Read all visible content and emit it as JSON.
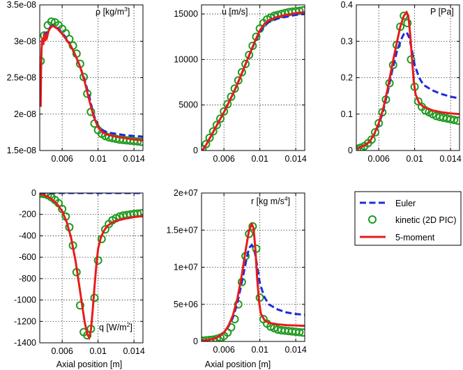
{
  "legend": {
    "entries": [
      {
        "key": "euler",
        "label": "Euler"
      },
      {
        "key": "kinetic",
        "label": "kinetic (2D PIC)"
      },
      {
        "key": "moment",
        "label": "5-moment"
      }
    ]
  },
  "styles": {
    "euler_color": "#1f2ad8",
    "kinetic_color": "#1f9a1f",
    "moment_color": "#e81b1b"
  },
  "chart_data": [
    {
      "id": "rho",
      "type": "line",
      "title": "ρ [kg/m",
      "title_sup": "3",
      "title_tail": "]",
      "xlim": [
        0.0035,
        0.015
      ],
      "ylim": [
        1.5e-08,
        3.5e-08
      ],
      "xticks": [
        0.006,
        0.01,
        0.014
      ],
      "xticklabels": [
        "0.006",
        "0.01",
        "0.014"
      ],
      "yticks": [
        1.5e-08,
        2e-08,
        2.5e-08,
        3e-08,
        3.5e-08
      ],
      "yticklabels": [
        "1.5e-08",
        "2e-08",
        "2.5e-08",
        "3e-08",
        "3.5e-08"
      ],
      "xlabel": "",
      "series": [
        {
          "name": "Euler",
          "x": [
            0.0037,
            0.004,
            0.0043,
            0.0047,
            0.005,
            0.0055,
            0.006,
            0.0065,
            0.007,
            0.0075,
            0.008,
            0.0085,
            0.009,
            0.0095,
            0.01,
            0.0105,
            0.011,
            0.012,
            0.013,
            0.014,
            0.015
          ],
          "y": [
            2.95e-08,
            3.1e-08,
            3.12e-08,
            3.2e-08,
            3.22e-08,
            3.18e-08,
            3.12e-08,
            3.03e-08,
            2.93e-08,
            2.8e-08,
            2.65e-08,
            2.47e-08,
            2.25e-08,
            1.99e-08,
            1.84e-08,
            1.78e-08,
            1.75e-08,
            1.73e-08,
            1.71e-08,
            1.7e-08,
            1.69e-08
          ]
        },
        {
          "name": "kinetic (2D PIC)",
          "x": [
            0.0036,
            0.004,
            0.0044,
            0.0048,
            0.0052,
            0.0056,
            0.006,
            0.0064,
            0.0068,
            0.0072,
            0.0076,
            0.008,
            0.0084,
            0.0088,
            0.0092,
            0.0096,
            0.01,
            0.0104,
            0.0108,
            0.0112,
            0.0116,
            0.012,
            0.0124,
            0.0128,
            0.0132,
            0.0136,
            0.014,
            0.0144,
            0.0148
          ],
          "y": [
            2.73e-08,
            3.08e-08,
            3.22e-08,
            3.27e-08,
            3.26e-08,
            3.22e-08,
            3.17e-08,
            3.11e-08,
            3.03e-08,
            2.94e-08,
            2.83e-08,
            2.69e-08,
            2.51e-08,
            2.28e-08,
            2.03e-08,
            1.87e-08,
            1.78e-08,
            1.73e-08,
            1.7e-08,
            1.68e-08,
            1.67e-08,
            1.66e-08,
            1.65e-08,
            1.645e-08,
            1.64e-08,
            1.635e-08,
            1.63e-08,
            1.625e-08,
            1.62e-08
          ]
        },
        {
          "name": "5-moment",
          "x": [
            0.0036,
            0.00365,
            0.0037,
            0.0038,
            0.0039,
            0.004,
            0.0041,
            0.0042,
            0.0043,
            0.0045,
            0.0048,
            0.005,
            0.0055,
            0.006,
            0.0065,
            0.007,
            0.0075,
            0.008,
            0.0085,
            0.009,
            0.0095,
            0.01,
            0.0105,
            0.011,
            0.012,
            0.013,
            0.014,
            0.015
          ],
          "y": [
            2.1e-08,
            2.6e-08,
            2.9e-08,
            3.05e-08,
            2.95e-08,
            3.1e-08,
            3e-08,
            3.08e-08,
            3.05e-08,
            3.15e-08,
            3.2e-08,
            3.21e-08,
            3.17e-08,
            3.1e-08,
            3.02e-08,
            2.93e-08,
            2.8e-08,
            2.65e-08,
            2.45e-08,
            2.2e-08,
            1.97e-08,
            1.82e-08,
            1.75e-08,
            1.72e-08,
            1.69e-08,
            1.67e-08,
            1.65e-08,
            1.64e-08
          ]
        }
      ]
    },
    {
      "id": "u",
      "type": "line",
      "title": "u [m/s]",
      "title_sup": "",
      "title_tail": "",
      "xlim": [
        0.0035,
        0.015
      ],
      "ylim": [
        0,
        16000
      ],
      "xticks": [
        0.006,
        0.01,
        0.014
      ],
      "xticklabels": [
        "0.006",
        "0.01",
        "0.014"
      ],
      "yticks": [
        0,
        5000,
        10000,
        15000
      ],
      "yticklabels": [
        "0",
        "5000",
        "10000",
        "15000"
      ],
      "xlabel": "",
      "series": [
        {
          "name": "Euler",
          "x": [
            0.0036,
            0.004,
            0.0045,
            0.005,
            0.0055,
            0.006,
            0.0065,
            0.007,
            0.0075,
            0.008,
            0.0085,
            0.009,
            0.0095,
            0.01,
            0.0105,
            0.011,
            0.012,
            0.013,
            0.014,
            0.015
          ],
          "y": [
            0,
            600,
            1500,
            2400,
            3300,
            4200,
            5200,
            6200,
            7300,
            8500,
            9700,
            10900,
            12000,
            13000,
            13700,
            14100,
            14500,
            14700,
            14900,
            15000
          ]
        },
        {
          "name": "kinetic (2D PIC)",
          "x": [
            0.0036,
            0.004,
            0.0044,
            0.0048,
            0.0052,
            0.0056,
            0.006,
            0.0064,
            0.0068,
            0.0072,
            0.0076,
            0.008,
            0.0084,
            0.0088,
            0.0092,
            0.0096,
            0.01,
            0.0104,
            0.0108,
            0.0112,
            0.0116,
            0.012,
            0.0124,
            0.0128,
            0.0132,
            0.0136,
            0.014,
            0.0144,
            0.0148
          ],
          "y": [
            150,
            700,
            1400,
            2100,
            2800,
            3500,
            4300,
            5100,
            5900,
            6800,
            7700,
            8600,
            9500,
            10500,
            11500,
            12500,
            13400,
            14000,
            14400,
            14600,
            14800,
            14900,
            15000,
            15100,
            15200,
            15250,
            15300,
            15350,
            15400
          ]
        },
        {
          "name": "5-moment",
          "x": [
            0.0036,
            0.004,
            0.0045,
            0.005,
            0.0055,
            0.006,
            0.0065,
            0.007,
            0.0075,
            0.008,
            0.0085,
            0.009,
            0.0095,
            0.01,
            0.0105,
            0.011,
            0.012,
            0.013,
            0.014,
            0.015
          ],
          "y": [
            0,
            600,
            1500,
            2400,
            3300,
            4200,
            5200,
            6200,
            7300,
            8500,
            9700,
            10900,
            12100,
            13200,
            13900,
            14300,
            14700,
            14900,
            15100,
            15200
          ]
        }
      ]
    },
    {
      "id": "P",
      "type": "line",
      "title": "P [Pa]",
      "title_sup": "",
      "title_tail": "",
      "xlim": [
        0.0035,
        0.015
      ],
      "ylim": [
        0,
        0.4
      ],
      "xticks": [
        0.006,
        0.01,
        0.014
      ],
      "xticklabels": [
        "0.006",
        "0.01",
        "0.014"
      ],
      "yticks": [
        0,
        0.1,
        0.2,
        0.3,
        0.4
      ],
      "yticklabels": [
        "0",
        "0.1",
        "0.2",
        "0.3",
        "0.4"
      ],
      "xlabel": "",
      "series": [
        {
          "name": "Euler",
          "x": [
            0.0036,
            0.0045,
            0.005,
            0.0055,
            0.006,
            0.0065,
            0.007,
            0.0075,
            0.008,
            0.0085,
            0.0088,
            0.0091,
            0.0094,
            0.0097,
            0.01,
            0.0105,
            0.011,
            0.012,
            0.013,
            0.014,
            0.015
          ],
          "y": [
            0.005,
            0.015,
            0.025,
            0.045,
            0.07,
            0.11,
            0.16,
            0.22,
            0.27,
            0.305,
            0.32,
            0.325,
            0.31,
            0.275,
            0.235,
            0.2,
            0.18,
            0.165,
            0.155,
            0.148,
            0.143
          ]
        },
        {
          "name": "kinetic (2D PIC)",
          "x": [
            0.0036,
            0.004,
            0.0044,
            0.0048,
            0.0052,
            0.0056,
            0.006,
            0.0064,
            0.0068,
            0.0072,
            0.0076,
            0.008,
            0.0084,
            0.0088,
            0.0092,
            0.0096,
            0.01,
            0.0104,
            0.0108,
            0.0112,
            0.0116,
            0.012,
            0.0124,
            0.0128,
            0.0132,
            0.0136,
            0.014,
            0.0144,
            0.0148
          ],
          "y": [
            0.005,
            0.008,
            0.012,
            0.02,
            0.03,
            0.05,
            0.075,
            0.105,
            0.14,
            0.185,
            0.235,
            0.29,
            0.34,
            0.37,
            0.35,
            0.25,
            0.175,
            0.135,
            0.12,
            0.11,
            0.105,
            0.1,
            0.095,
            0.092,
            0.09,
            0.088,
            0.086,
            0.084,
            0.082
          ]
        },
        {
          "name": "5-moment",
          "x": [
            0.0036,
            0.0045,
            0.005,
            0.0055,
            0.006,
            0.0065,
            0.007,
            0.0075,
            0.008,
            0.0084,
            0.0088,
            0.0091,
            0.0093,
            0.0095,
            0.0097,
            0.0099,
            0.0101,
            0.0105,
            0.011,
            0.012,
            0.013,
            0.014,
            0.015
          ],
          "y": [
            0.005,
            0.015,
            0.025,
            0.045,
            0.075,
            0.115,
            0.17,
            0.235,
            0.295,
            0.34,
            0.37,
            0.38,
            0.37,
            0.32,
            0.255,
            0.19,
            0.155,
            0.13,
            0.12,
            0.11,
            0.105,
            0.102,
            0.1
          ]
        }
      ]
    },
    {
      "id": "q",
      "type": "line",
      "title": "q [W/m",
      "title_sup": "2",
      "title_tail": "]",
      "xlim": [
        0.0035,
        0.015
      ],
      "ylim": [
        -1400,
        0
      ],
      "xticks": [
        0.006,
        0.01,
        0.014
      ],
      "xticklabels": [
        "0.006",
        "0.01",
        "0.014"
      ],
      "yticks": [
        -1400,
        -1200,
        -1000,
        -800,
        -600,
        -400,
        -200,
        0
      ],
      "yticklabels": [
        "-1400",
        "-1200",
        "-1000",
        "-800",
        "-600",
        "-400",
        "-200",
        "0"
      ],
      "xlabel": "Axial position [m]",
      "series": [
        {
          "name": "Euler",
          "x": [
            0.0035,
            0.015
          ],
          "y": [
            0,
            0
          ]
        },
        {
          "name": "kinetic (2D PIC)",
          "x": [
            0.0036,
            0.004,
            0.0044,
            0.0048,
            0.0052,
            0.0056,
            0.006,
            0.0064,
            0.0068,
            0.0072,
            0.0076,
            0.008,
            0.0084,
            0.0088,
            0.0092,
            0.0096,
            0.01,
            0.0104,
            0.0108,
            0.0112,
            0.0116,
            0.012,
            0.0124,
            0.0128,
            0.0132,
            0.0136,
            0.014,
            0.0144,
            0.0148
          ],
          "y": [
            -5,
            -10,
            -20,
            -40,
            -65,
            -95,
            -150,
            -220,
            -320,
            -490,
            -740,
            -1050,
            -1300,
            -1330,
            -1270,
            -980,
            -630,
            -430,
            -340,
            -290,
            -255,
            -235,
            -220,
            -210,
            -205,
            -200,
            -195,
            -192,
            -190
          ]
        },
        {
          "name": "5-moment",
          "x": [
            0.0036,
            0.004,
            0.0045,
            0.005,
            0.0055,
            0.006,
            0.0065,
            0.007,
            0.0075,
            0.008,
            0.0085,
            0.0088,
            0.009,
            0.0092,
            0.0094,
            0.0096,
            0.0098,
            0.01,
            0.0103,
            0.0106,
            0.011,
            0.0115,
            0.012,
            0.013,
            0.014,
            0.015
          ],
          "y": [
            -10,
            -20,
            -40,
            -70,
            -110,
            -170,
            -270,
            -420,
            -640,
            -920,
            -1200,
            -1320,
            -1350,
            -1280,
            -1100,
            -880,
            -680,
            -520,
            -420,
            -360,
            -310,
            -280,
            -260,
            -240,
            -225,
            -215
          ]
        }
      ]
    },
    {
      "id": "r",
      "type": "line",
      "title": "r [kg m/s",
      "title_sup": "4",
      "title_tail": "]",
      "xlim": [
        0.0035,
        0.015
      ],
      "ylim": [
        0,
        20000000
      ],
      "xticks": [
        0.006,
        0.01,
        0.014
      ],
      "xticklabels": [
        "0.006",
        "0.01",
        "0.014"
      ],
      "yticks": [
        0,
        5000000,
        10000000,
        15000000,
        20000000
      ],
      "yticklabels": [
        "0",
        "5e+06",
        "1e+07",
        "1.5e+07",
        "2e+07"
      ],
      "xlabel": "Axial position [m]",
      "series": [
        {
          "name": "Euler",
          "x": [
            0.0036,
            0.0045,
            0.005,
            0.0055,
            0.006,
            0.0065,
            0.007,
            0.0075,
            0.008,
            0.0085,
            0.0088,
            0.0091,
            0.0094,
            0.0097,
            0.01,
            0.0105,
            0.011,
            0.012,
            0.013,
            0.014,
            0.015
          ],
          "y": [
            100000,
            250000,
            400000,
            700000,
            1200000,
            2000000,
            3200000,
            5200000,
            8000000,
            11000000,
            12600000,
            13000000,
            12300000,
            10200000,
            7800000,
            6000000,
            5000000,
            4300000,
            3900000,
            3700000,
            3600000
          ]
        },
        {
          "name": "kinetic (2D PIC)",
          "x": [
            0.0036,
            0.004,
            0.0044,
            0.0048,
            0.0052,
            0.0056,
            0.006,
            0.0064,
            0.0068,
            0.0072,
            0.0076,
            0.008,
            0.0084,
            0.0088,
            0.0092,
            0.0096,
            0.01,
            0.0104,
            0.0108,
            0.0112,
            0.0116,
            0.012,
            0.0124,
            0.0128,
            0.0132,
            0.0136,
            0.014,
            0.0144,
            0.0148
          ],
          "y": [
            100000,
            150000,
            200000,
            250000,
            350000,
            500000,
            750000,
            1200000,
            1900000,
            3000000,
            5000000,
            8000000,
            11500000,
            14500000,
            15500000,
            12500000,
            5900000,
            3000000,
            2400000,
            2000000,
            1800000,
            1600000,
            1500000,
            1450000,
            1400000,
            1350000,
            1300000,
            1250000,
            1200000
          ]
        },
        {
          "name": "5-moment",
          "x": [
            0.0036,
            0.0045,
            0.005,
            0.0055,
            0.006,
            0.0065,
            0.007,
            0.0075,
            0.008,
            0.0084,
            0.0088,
            0.0091,
            0.0093,
            0.0095,
            0.0097,
            0.0099,
            0.0101,
            0.0105,
            0.011,
            0.012,
            0.013,
            0.014,
            0.015
          ],
          "y": [
            100000,
            250000,
            400000,
            700000,
            1200000,
            2100000,
            3500000,
            5800000,
            9000000,
            12200000,
            15000000,
            15800000,
            15300000,
            12500000,
            8500000,
            5500000,
            3800000,
            2900000,
            2500000,
            2300000,
            2200000,
            2150000,
            2100000
          ]
        }
      ]
    }
  ]
}
